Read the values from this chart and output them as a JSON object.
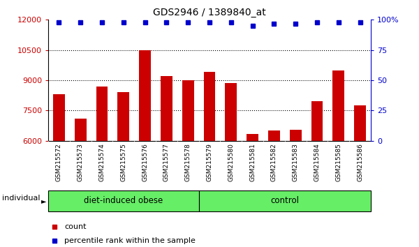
{
  "title": "GDS2946 / 1389840_at",
  "categories": [
    "GSM215572",
    "GSM215573",
    "GSM215574",
    "GSM215575",
    "GSM215576",
    "GSM215577",
    "GSM215578",
    "GSM215579",
    "GSM215580",
    "GSM215581",
    "GSM215582",
    "GSM215583",
    "GSM215584",
    "GSM215585",
    "GSM215586"
  ],
  "bar_values": [
    8300,
    7100,
    8700,
    8400,
    10500,
    9200,
    9000,
    9400,
    8850,
    6350,
    6500,
    6550,
    7950,
    9500,
    7750
  ],
  "percentile_values": [
    98,
    98,
    98,
    98,
    98,
    98,
    98,
    98,
    98,
    95,
    97,
    97,
    98,
    98,
    98
  ],
  "bar_color": "#cc0000",
  "percentile_color": "#0000cc",
  "ylim_left": [
    6000,
    12000
  ],
  "ylim_right": [
    0,
    100
  ],
  "yticks_left": [
    6000,
    7500,
    9000,
    10500,
    12000
  ],
  "yticks_right": [
    0,
    25,
    50,
    75,
    100
  ],
  "group1_label": "diet-induced obese",
  "group1_count": 7,
  "group2_label": "control",
  "group2_count": 8,
  "group_color": "#66ee66",
  "individual_label": "individual",
  "legend_count_label": "count",
  "legend_percentile_label": "percentile rank within the sample",
  "plot_bg_color": "#ffffff",
  "tick_bg_color": "#d0d0d0",
  "bar_width": 0.55
}
